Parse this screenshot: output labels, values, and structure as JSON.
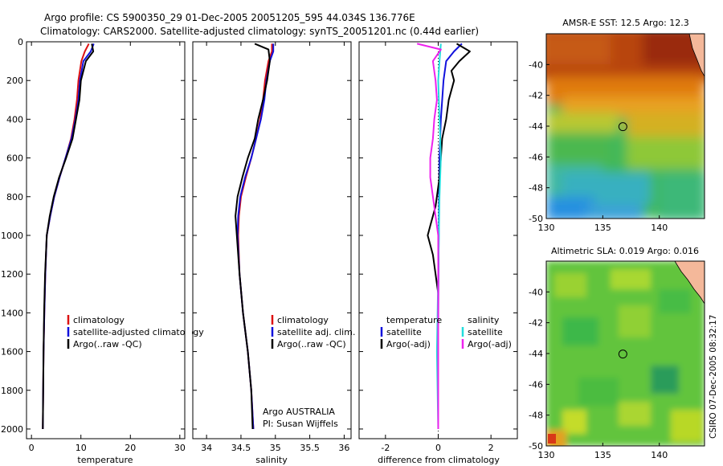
{
  "title_line1": "Argo profile: CS 5900350_29 01-Dec-2005 20051205_595 44.034S 136.776E",
  "title_line2": "Climatology: CARS2000. Satellite-adjusted climatology: synTS_20051201.nc (0.44d earlier)",
  "watermark": "CSIRO 07-Dec-2005 08:32:17",
  "colors": {
    "climatology": "#dd1111",
    "satellite": "#1111dd",
    "argo": "#000000",
    "cyan": "#22dddd",
    "magenta": "#ee22ee"
  },
  "chart_data": [
    {
      "type": "line",
      "xlabel": "temperature",
      "xlim": [
        -1,
        31
      ],
      "xticks": [
        0,
        10,
        20,
        30
      ],
      "ylim": [
        0,
        2050
      ],
      "yticks": [
        0,
        200,
        400,
        600,
        800,
        1000,
        1200,
        1400,
        1600,
        1800,
        2000
      ],
      "legend_entries": [
        "climatology",
        "satellite-adjusted climatology",
        "Argo(..raw -QC)"
      ],
      "series": [
        {
          "name": "climatology",
          "color": "#dd1111",
          "x": [
            11.6,
            10.8,
            10.1,
            9.5,
            9.2,
            8.7,
            8.0,
            6.9,
            5.7,
            4.6,
            3.8,
            3.1,
            2.8,
            2.6,
            2.45,
            2.3
          ],
          "y": [
            10,
            50,
            100,
            200,
            300,
            400,
            500,
            600,
            700,
            800,
            900,
            1000,
            1200,
            1400,
            1600,
            2000
          ]
        },
        {
          "name": "satellite-adjusted climatology",
          "color": "#1111dd",
          "x": [
            12.6,
            12.0,
            10.5,
            9.8,
            9.5,
            8.9,
            8.1,
            6.9,
            5.7,
            4.6,
            3.8,
            3.1,
            2.8,
            2.6,
            2.45,
            2.3
          ],
          "y": [
            10,
            50,
            100,
            200,
            300,
            400,
            500,
            600,
            700,
            800,
            900,
            1000,
            1200,
            1400,
            1600,
            2000
          ]
        },
        {
          "name": "Argo(..raw -QC)",
          "color": "#000000",
          "x": [
            12.2,
            12.5,
            11.0,
            10.0,
            9.7,
            9.0,
            8.3,
            7.0,
            5.6,
            4.5,
            3.7,
            3.1,
            2.75,
            2.55,
            2.45,
            2.3
          ],
          "y": [
            10,
            50,
            100,
            200,
            300,
            400,
            500,
            600,
            700,
            800,
            900,
            1000,
            1200,
            1400,
            1600,
            2000
          ]
        }
      ]
    },
    {
      "type": "line",
      "xlabel": "salinity",
      "xlim": [
        33.8,
        36.1
      ],
      "xticks": [
        34,
        34.5,
        35,
        35.5,
        36
      ],
      "ylim": [
        0,
        2050
      ],
      "legend_entries": [
        "climatology",
        "satellite adj. clim.",
        "Argo(..raw -QC)"
      ],
      "footer_line1": "Argo AUSTRALIA",
      "footer_line2": "PI: Susan Wijffels",
      "series": [
        {
          "name": "climatology",
          "color": "#dd1111",
          "x": [
            34.95,
            34.95,
            34.9,
            34.85,
            34.82,
            34.78,
            34.72,
            34.65,
            34.57,
            34.5,
            34.47,
            34.46,
            34.48,
            34.53,
            34.6,
            34.65,
            34.68
          ],
          "y": [
            10,
            50,
            100,
            200,
            300,
            400,
            500,
            600,
            700,
            800,
            900,
            1000,
            1200,
            1400,
            1600,
            1800,
            2000
          ]
        },
        {
          "name": "satellite adj. clim.",
          "color": "#1111dd",
          "x": [
            34.97,
            34.97,
            34.92,
            34.87,
            34.84,
            34.79,
            34.72,
            34.65,
            34.56,
            34.49,
            34.46,
            34.45,
            34.48,
            34.53,
            34.6,
            34.65,
            34.68
          ],
          "y": [
            10,
            50,
            100,
            200,
            300,
            400,
            500,
            600,
            700,
            800,
            900,
            1000,
            1200,
            1400,
            1600,
            1800,
            2000
          ]
        },
        {
          "name": "Argo(..raw -QC)",
          "color": "#000000",
          "x": [
            34.7,
            34.9,
            34.92,
            34.88,
            34.82,
            34.75,
            34.7,
            34.6,
            34.52,
            34.45,
            34.42,
            34.44,
            34.48,
            34.53,
            34.6,
            34.65,
            34.67
          ],
          "y": [
            10,
            40,
            100,
            200,
            300,
            400,
            500,
            600,
            700,
            800,
            900,
            1000,
            1200,
            1400,
            1600,
            1800,
            2000
          ]
        }
      ]
    },
    {
      "type": "line",
      "xlabel": "difference from climatology",
      "xlim": [
        -3,
        3
      ],
      "xticks": [
        -2,
        0,
        2
      ],
      "ylim": [
        0,
        2050
      ],
      "legend_left_title": "temperature",
      "legend_right_title": "salinity",
      "legend_entries": [
        "satellite",
        "Argo(-adj)",
        "satellite",
        "Argo(-adj)"
      ],
      "series": [
        {
          "name": "temperature satellite",
          "color": "#1111dd",
          "x": [
            0.9,
            0.6,
            0.3,
            0.2,
            0.1,
            0.05,
            0.03,
            0.02,
            0.01,
            0.0,
            0.0,
            0.0
          ],
          "y": [
            10,
            50,
            100,
            200,
            400,
            600,
            800,
            1000,
            1200,
            1500,
            1800,
            2000
          ]
        },
        {
          "name": "temperature Argo(-adj)",
          "color": "#000000",
          "x": [
            0.7,
            1.2,
            0.8,
            0.5,
            0.6,
            0.4,
            0.3,
            0.15,
            0.1,
            0.05,
            -0.1,
            -0.3,
            -0.4,
            -0.2,
            0.0,
            0.0,
            0.0
          ],
          "y": [
            10,
            50,
            100,
            150,
            200,
            300,
            400,
            500,
            600,
            700,
            850,
            950,
            1000,
            1100,
            1300,
            1600,
            2000
          ]
        },
        {
          "name": "salinity satellite",
          "color": "#22dddd",
          "x": [
            0.1,
            0.05,
            0.0,
            0.05,
            0.1,
            0.05,
            0.0,
            -0.05,
            0.0
          ],
          "y": [
            10,
            100,
            200,
            400,
            600,
            800,
            1200,
            1600,
            2000
          ]
        },
        {
          "name": "salinity Argo(-adj)",
          "color": "#ee22ee",
          "x": [
            -0.8,
            0.1,
            -0.2,
            -0.1,
            -0.05,
            -0.15,
            -0.2,
            -0.3,
            -0.3,
            -0.2,
            -0.1,
            0.0,
            0.0,
            0.0
          ],
          "y": [
            10,
            40,
            100,
            200,
            300,
            400,
            500,
            600,
            700,
            800,
            900,
            1000,
            1500,
            2000
          ]
        }
      ]
    },
    {
      "type": "heatmap",
      "title": "AMSR-E SST: 12.5 Argo: 12.3",
      "xlim": [
        130,
        144
      ],
      "xticks": [
        130,
        135,
        140
      ],
      "ylim": [
        -50,
        -38
      ],
      "yticks": [
        -40,
        -42,
        -44,
        -46,
        -48,
        -50
      ],
      "marker": {
        "lon": 136.776,
        "lat": -44.034
      }
    },
    {
      "type": "heatmap",
      "title": "Altimetric SLA: 0.019 Argo: 0.016",
      "xlim": [
        130,
        144
      ],
      "xticks": [
        130,
        135,
        140
      ],
      "ylim": [
        -50,
        -38
      ],
      "yticks": [
        -40,
        -42,
        -44,
        -46,
        -48,
        -50
      ],
      "marker": {
        "lon": 136.776,
        "lat": -44.034
      }
    }
  ]
}
